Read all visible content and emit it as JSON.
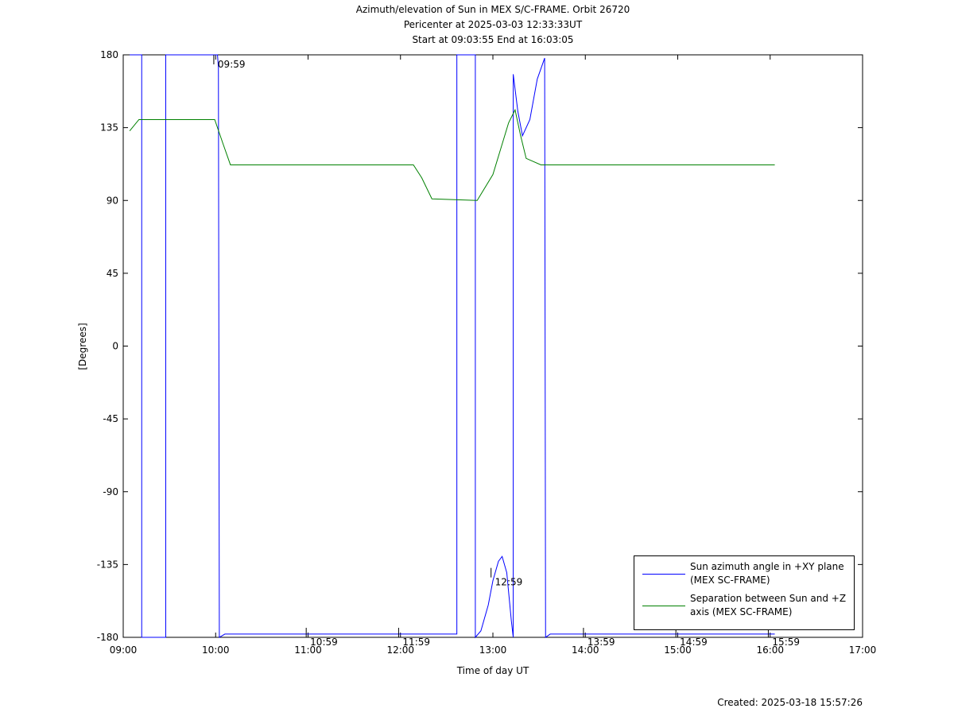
{
  "chart_data": {
    "type": "line",
    "title": [
      "Azimuth/elevation of Sun in MEX S/C-FRAME.  Orbit 26720",
      "Pericenter at 2025-03-03 12:33:33UT",
      "Start at 09:03:55 End at 16:03:05"
    ],
    "xlabel": "Time of day UT",
    "ylabel": "[Degrees]",
    "footer": "Created: 2025-03-18 15:57:26",
    "xlim": [
      9,
      17
    ],
    "xticks": [
      {
        "value": 9,
        "label": "09:00"
      },
      {
        "value": 10,
        "label": "10:00"
      },
      {
        "value": 11,
        "label": "11:00"
      },
      {
        "value": 12,
        "label": "12:00"
      },
      {
        "value": 13,
        "label": "13:00"
      },
      {
        "value": 14,
        "label": "14:00"
      },
      {
        "value": 15,
        "label": "15:00"
      },
      {
        "value": 16,
        "label": "16:00"
      },
      {
        "value": 17,
        "label": "17:00"
      }
    ],
    "ylim": [
      -180,
      180
    ],
    "yticks": [
      -180,
      -135,
      -90,
      -45,
      0,
      45,
      90,
      135,
      180
    ],
    "series": [
      {
        "name": "Sun azimuth angle in +XY plane (MEX SC-FRAME)",
        "color": "#0000ff",
        "x": [
          9.07,
          9.2,
          9.2,
          9.46,
          9.46,
          10.02,
          10.03,
          10.04,
          10.1,
          12.61,
          12.61,
          12.81,
          12.81,
          12.87,
          12.95,
          13.0,
          13.06,
          13.1,
          13.15,
          13.2,
          13.22,
          13.22,
          13.27,
          13.32,
          13.4,
          13.48,
          13.56,
          13.57,
          13.62,
          16.05
        ],
        "values": [
          180,
          180,
          -180,
          -180,
          180,
          180,
          172,
          -180,
          -178,
          -178,
          180,
          180,
          -180,
          -176,
          -160,
          -145,
          -133,
          -130,
          -140,
          -170,
          -180,
          168,
          145,
          130,
          140,
          165,
          178,
          -180,
          -178,
          -178
        ]
      },
      {
        "name": "Separation between Sun and +Z axis (MEX SC-FRAME)",
        "color": "#008000",
        "x": [
          9.07,
          9.17,
          9.99,
          10.08,
          10.16,
          12.14,
          12.23,
          12.34,
          12.83,
          13.0,
          13.17,
          13.24,
          13.3,
          13.36,
          13.52,
          16.05
        ],
        "values": [
          133,
          140,
          140,
          125,
          112,
          112,
          104,
          91,
          90,
          106,
          138,
          146,
          130,
          116,
          112,
          112
        ]
      }
    ],
    "annotations": [
      {
        "text": "09:59",
        "x": 9.98,
        "y": 180
      },
      {
        "text": "10:59",
        "x": 10.98,
        "y": -180
      },
      {
        "text": "11:59",
        "x": 11.98,
        "y": -180
      },
      {
        "text": "12:59",
        "x": 12.98,
        "y": -143
      },
      {
        "text": "13:59",
        "x": 13.98,
        "y": -180
      },
      {
        "text": "14:59",
        "x": 14.98,
        "y": -180
      },
      {
        "text": "15:59",
        "x": 15.98,
        "y": -180
      }
    ]
  }
}
